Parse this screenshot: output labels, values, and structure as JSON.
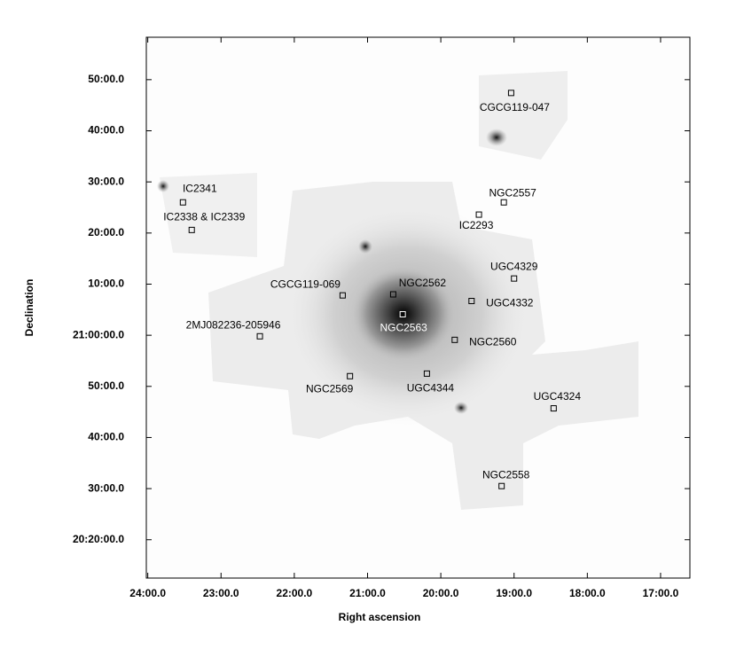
{
  "chart_data": {
    "type": "sky-map",
    "x_label": "Right ascension",
    "y_label": "Declination",
    "xlim": [
      24.02,
      16.6
    ],
    "ylim": [
      12.5,
      118.3
    ],
    "xticks": [
      {
        "value": 24,
        "label": "24:00.0"
      },
      {
        "value": 23,
        "label": "23:00.0"
      },
      {
        "value": 22,
        "label": "22:00.0"
      },
      {
        "value": 21,
        "label": "21:00.0"
      },
      {
        "value": 20,
        "label": "20:00.0"
      },
      {
        "value": 19,
        "label": "19:00.0"
      },
      {
        "value": 18,
        "label": "18:00.0"
      },
      {
        "value": 17,
        "label": "17:00.0"
      }
    ],
    "yticks": [
      {
        "value": 110,
        "label": "50:00.0"
      },
      {
        "value": 100,
        "label": "40:00.0"
      },
      {
        "value": 90,
        "label": "30:00.0"
      },
      {
        "value": 80,
        "label": "20:00.0"
      },
      {
        "value": 70,
        "label": "10:00.0"
      },
      {
        "value": 60,
        "label": "21:00:00.0"
      },
      {
        "value": 50,
        "label": "50:00.0"
      },
      {
        "value": 40,
        "label": "40:00.0"
      },
      {
        "value": 30,
        "label": "30:00.0"
      },
      {
        "value": 20,
        "label": "20:20:00.0"
      }
    ],
    "objects": [
      {
        "name": "CGCG119-047",
        "x": 19.04,
        "y": 107.4
      },
      {
        "name": "IC2341",
        "x": 23.52,
        "y": 86.0
      },
      {
        "name": "IC2338 & IC2339",
        "x": 23.4,
        "y": 80.6
      },
      {
        "name": "NGC2557",
        "x": 19.14,
        "y": 86.0
      },
      {
        "name": "IC2293",
        "x": 19.48,
        "y": 83.6
      },
      {
        "name": "UGC4329",
        "x": 19.0,
        "y": 71.1
      },
      {
        "name": "CGCG119-069",
        "x": 21.34,
        "y": 67.8
      },
      {
        "name": "NGC2562",
        "x": 20.65,
        "y": 68.0
      },
      {
        "name": "UGC4332",
        "x": 19.58,
        "y": 66.7
      },
      {
        "name": "NGC2563",
        "x": 20.52,
        "y": 64.1
      },
      {
        "name": "2MJ082236-205946",
        "x": 22.47,
        "y": 59.8
      },
      {
        "name": "NGC2560",
        "x": 19.81,
        "y": 59.1
      },
      {
        "name": "NGC2569",
        "x": 21.24,
        "y": 52.0
      },
      {
        "name": "UGC4344",
        "x": 20.19,
        "y": 52.5
      },
      {
        "name": "UGC4324",
        "x": 18.46,
        "y": 45.7
      },
      {
        "name": "NGC2558",
        "x": 19.17,
        "y": 30.5
      }
    ]
  }
}
